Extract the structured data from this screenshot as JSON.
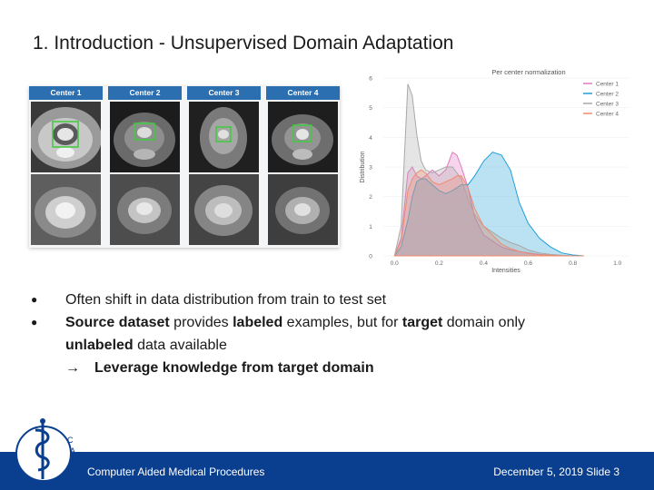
{
  "slide": {
    "title": "1. Introduction - Unsupervised Domain Adaptation"
  },
  "figure": {
    "centers": [
      "Center 1",
      "Center 2",
      "Center 3",
      "Center 4"
    ]
  },
  "chart_data": {
    "type": "area",
    "title": "Per center normalization",
    "xlabel": "Intensities",
    "ylabel": "Distribution",
    "xlim": [
      -0.05,
      1.05
    ],
    "ylim": [
      0,
      6
    ],
    "xticks": [
      "0.0",
      "0.2",
      "0.4",
      "0.6",
      "0.8",
      "1.0"
    ],
    "yticks": [
      "0",
      "1",
      "2",
      "3",
      "4",
      "5",
      "6"
    ],
    "legend_position": "top-right",
    "x": [
      0.0,
      0.03,
      0.06,
      0.08,
      0.1,
      0.12,
      0.14,
      0.17,
      0.2,
      0.23,
      0.26,
      0.28,
      0.3,
      0.33,
      0.36,
      0.4,
      0.44,
      0.48,
      0.52,
      0.56,
      0.6,
      0.65,
      0.7,
      0.75,
      0.8,
      0.85
    ],
    "series": [
      {
        "name": "Center 1",
        "color": "#e377c2",
        "values": [
          0,
          0.6,
          2.8,
          3.0,
          2.7,
          2.6,
          2.7,
          2.9,
          2.7,
          2.9,
          3.5,
          3.4,
          3.0,
          2.3,
          1.3,
          0.7,
          0.5,
          0.3,
          0.2,
          0.15,
          0.1,
          0.05,
          0.02,
          0,
          0,
          0
        ]
      },
      {
        "name": "Center 2",
        "color": "#1f9fd8",
        "values": [
          0,
          0.3,
          1.2,
          2.0,
          2.5,
          2.6,
          2.6,
          2.4,
          2.2,
          2.1,
          2.2,
          2.3,
          2.4,
          2.4,
          2.7,
          3.2,
          3.5,
          3.4,
          2.9,
          1.8,
          1.1,
          0.6,
          0.3,
          0.1,
          0.03,
          0
        ]
      },
      {
        "name": "Center 3",
        "color": "#a8a8a8",
        "values": [
          0,
          1.0,
          5.8,
          5.4,
          4.1,
          3.2,
          2.9,
          2.8,
          2.9,
          3.0,
          3.0,
          2.8,
          2.6,
          1.9,
          1.4,
          1.0,
          0.8,
          0.6,
          0.45,
          0.35,
          0.2,
          0.1,
          0.05,
          0.02,
          0,
          0
        ]
      },
      {
        "name": "Center 4",
        "color": "#f08c6e",
        "values": [
          0,
          0.5,
          2.2,
          2.6,
          2.8,
          2.9,
          2.8,
          2.5,
          2.4,
          2.5,
          2.6,
          2.7,
          2.7,
          2.3,
          1.6,
          1.0,
          0.7,
          0.4,
          0.25,
          0.15,
          0.08,
          0.04,
          0.02,
          0,
          0,
          0
        ]
      }
    ]
  },
  "bullets": {
    "b1": "Often shift in data distribution from train to test set",
    "b2_bold_a": "Source dataset",
    "b2_mid_a": " provides ",
    "b2_bold_b": "labeled",
    "b2_mid_b": " examples, but for ",
    "b2_bold_c": "target",
    "b2_mid_c": " domain only",
    "b2_bold_d": "unlabeled",
    "b2_tail": " data available",
    "arrow": "→",
    "arrow_text": "Leverage knowledge from target domain"
  },
  "footer": {
    "left": "Computer Aided Medical Procedures",
    "right": "December 5, 2019  Slide 3",
    "bg_color": "#0a3f8f"
  },
  "logo": {
    "icon": "caduceus-camp-logo",
    "text": "CAMP"
  }
}
